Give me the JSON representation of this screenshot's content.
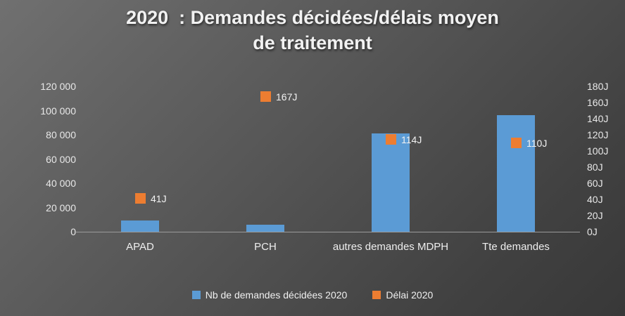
{
  "title_lines": [
    "2020  : Demandes décidées/délais moyen",
    "de traitement"
  ],
  "legend": {
    "items": [
      {
        "label": "Nb de demandes décidées 2020",
        "color": "#5B9BD5"
      },
      {
        "label": "Délai 2020",
        "color": "#ED7D31"
      }
    ]
  },
  "chart_data": {
    "type": "bar",
    "title": "2020  : Demandes décidées/délais moyen de traitement",
    "categories": [
      "APAD",
      "PCH",
      "autres demandes MDPH",
      "Tte demandes"
    ],
    "series": [
      {
        "name": "Nb de demandes décidées 2020",
        "type": "bar",
        "axis": "left",
        "color": "#5B9BD5",
        "values": [
          9500,
          5800,
          81200,
          96500
        ]
      },
      {
        "name": "Délai 2020",
        "type": "point",
        "axis": "right",
        "color": "#ED7D31",
        "values": [
          41,
          167,
          114,
          110
        ],
        "labels": [
          "41J",
          "167J",
          "114J",
          "110J"
        ]
      }
    ],
    "left_axis": {
      "min": 0,
      "max": 120000,
      "step": 20000,
      "tick_labels": [
        "0",
        "20 000",
        "40 000",
        "60 000",
        "80 000",
        "100 000",
        "120 000"
      ]
    },
    "right_axis": {
      "min": 0,
      "max": 180,
      "step": 20,
      "tick_labels": [
        "0J",
        "20J",
        "40J",
        "60J",
        "80J",
        "100J",
        "120J",
        "140J",
        "160J",
        "180J"
      ]
    },
    "grid": false,
    "legend_position": "bottom"
  }
}
